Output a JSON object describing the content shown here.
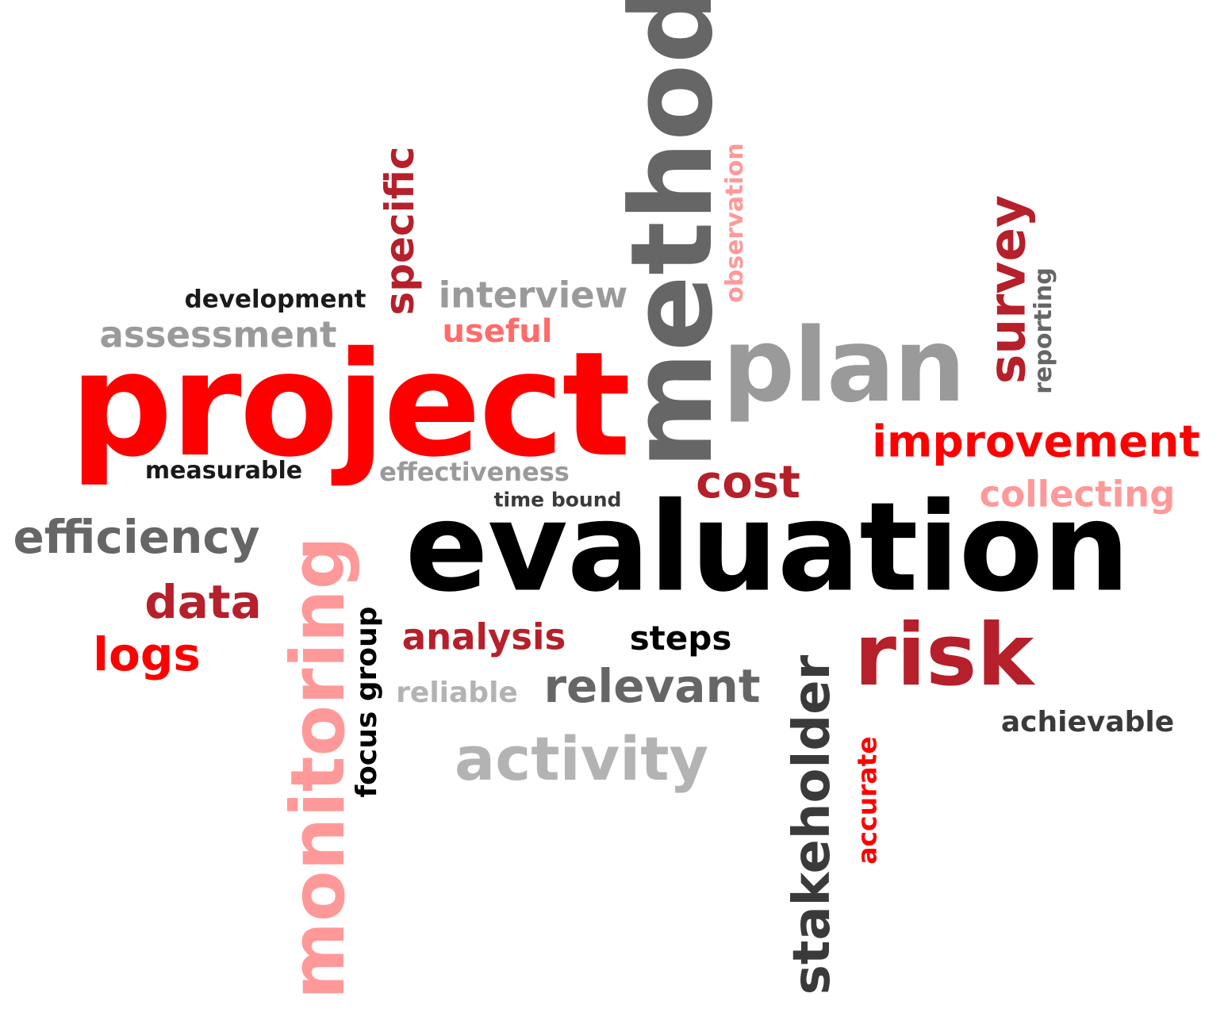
{
  "colors": {
    "black": "#000000",
    "dark_gray": "#3a3a3a",
    "gray": "#666666",
    "light_gray": "#9a9a9a",
    "silver": "#b3b3b3",
    "red": "#ff0000",
    "dark_red": "#b5202a",
    "pink": "#ff9999",
    "background": "#ffffff"
  },
  "words": {
    "evaluation": "evaluation",
    "project": "project",
    "method": "method",
    "plan": "plan",
    "monitoring": "monitoring",
    "risk": "risk",
    "stakeholder": "stakeholder",
    "activity": "activity",
    "survey": "survey",
    "specific": "specific",
    "improvement": "improvement",
    "efficiency": "efficiency",
    "cost": "cost",
    "data": "data",
    "logs": "logs",
    "relevant": "relevant",
    "focus_group": "focus group",
    "accurate": "accurate",
    "observation": "observation",
    "reporting": "reporting",
    "collecting": "collecting",
    "analysis": "analysis",
    "steps": "steps",
    "interview": "interview",
    "useful": "useful",
    "assessment": "assessment",
    "development": "development",
    "measurable": "measurable",
    "effectiveness": "effectiveness",
    "time_bound": "time bound",
    "reliable": "reliable",
    "achievable": "achievable"
  },
  "word_colors": {
    "evaluation": "#000000",
    "project": "#ff0000",
    "method": "#666666",
    "plan": "#9a9a9a",
    "monitoring": "#ff9999",
    "risk": "#b5202a",
    "stakeholder": "#3a3a3a",
    "activity": "#b3b3b3",
    "survey": "#b5202a",
    "specific": "#b5202a",
    "improvement": "#ff0000",
    "efficiency": "#666666",
    "cost": "#b5202a",
    "data": "#b5202a",
    "logs": "#ff0000",
    "relevant": "#666666",
    "focus_group": "#000000",
    "accurate": "#ff0000",
    "observation": "#ff9999",
    "reporting": "#666666",
    "collecting": "#ff9999",
    "analysis": "#b5202a",
    "steps": "#000000",
    "interview": "#9a9a9a",
    "useful": "#ff6b6b",
    "assessment": "#9a9a9a",
    "development": "#1a1a1a",
    "measurable": "#1a1a1a",
    "effectiveness": "#9a9a9a",
    "time_bound": "#3a3a3a",
    "reliable": "#b3b3b3",
    "achievable": "#3a3a3a"
  }
}
